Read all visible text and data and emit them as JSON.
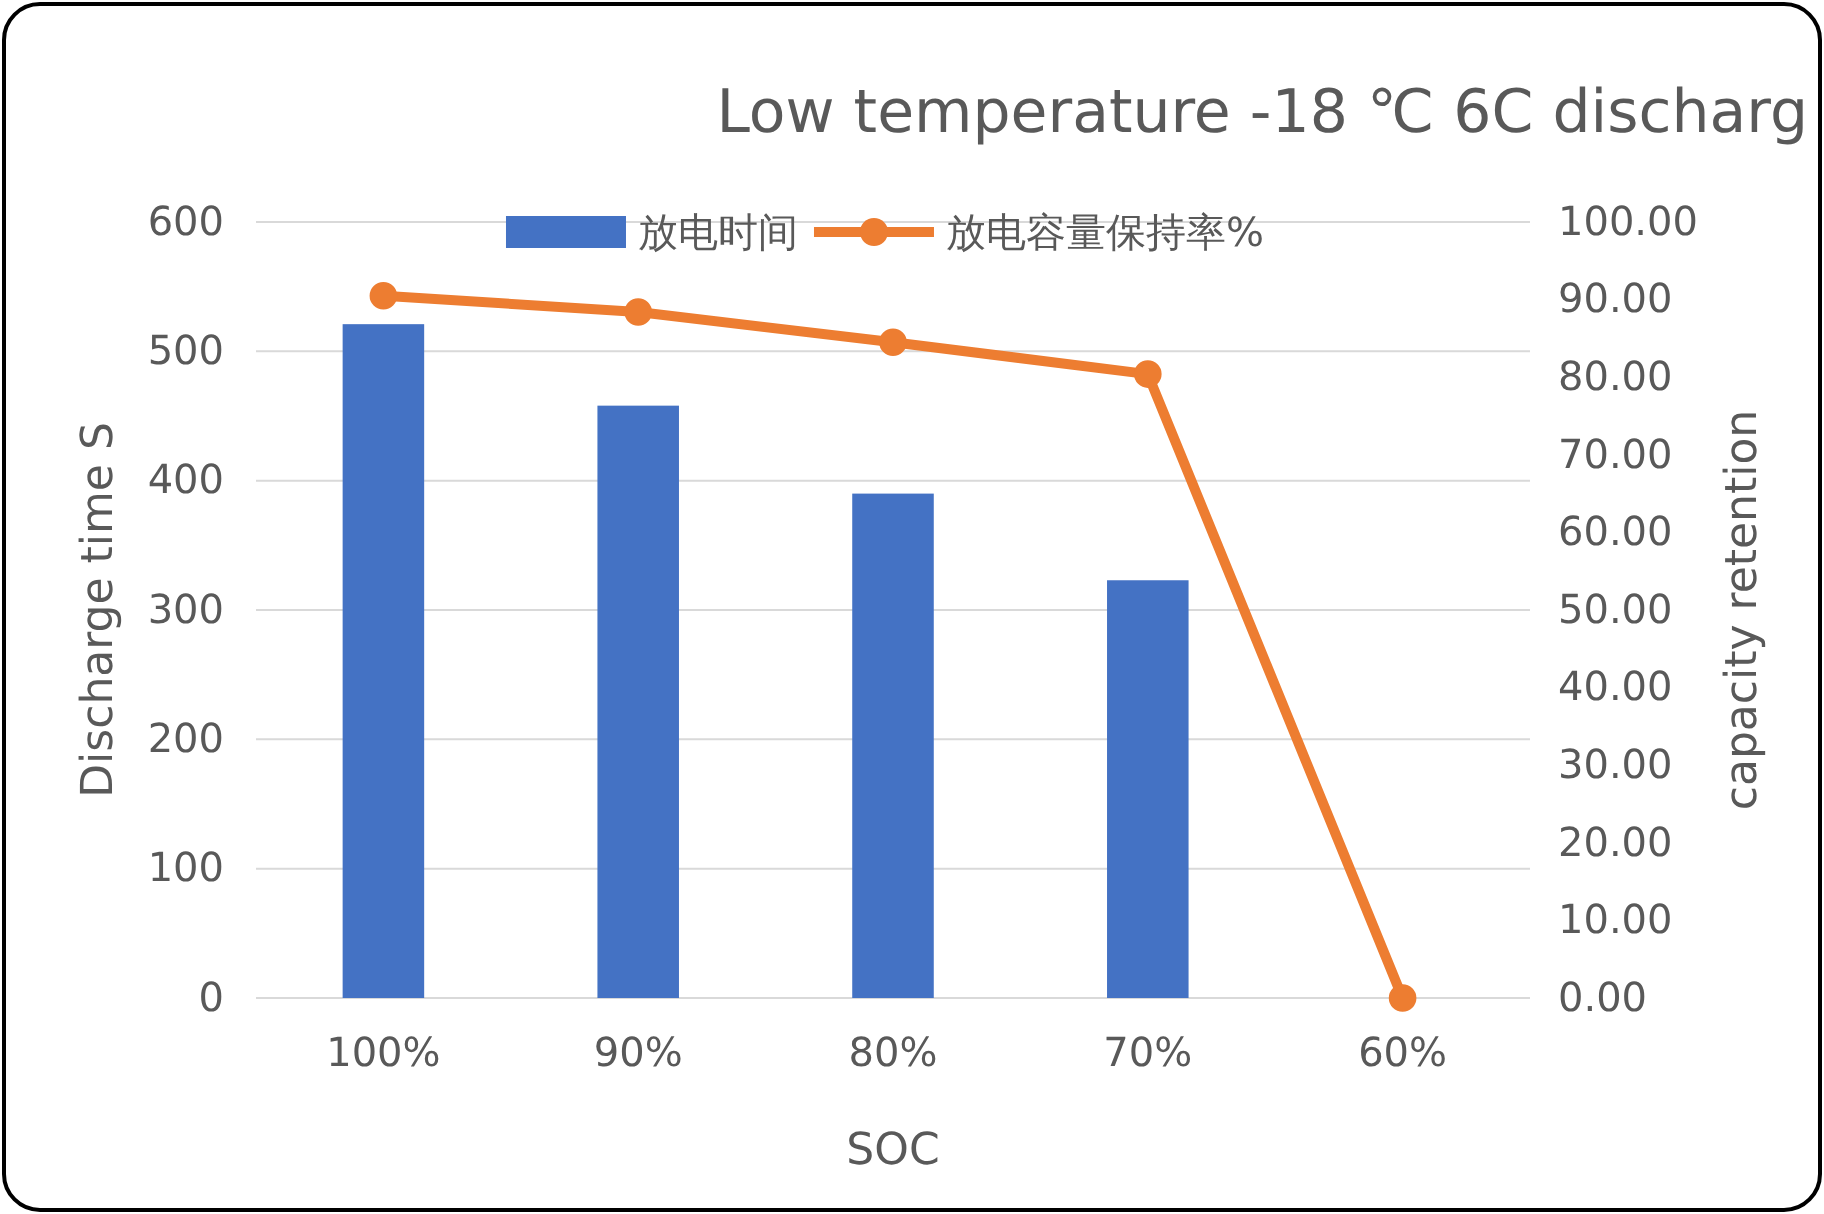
{
  "chart_data": {
    "type": "bar",
    "title": "Low temperature -18 ℃ 6C discharg",
    "xlabel": "SOC",
    "ylabel": "Discharge time S",
    "y2label": "capacity retention",
    "categories": [
      "100%",
      "90%",
      "80%",
      "70%",
      "60%"
    ],
    "series": [
      {
        "name": "放电时间",
        "color": "#4472c4",
        "values": [
          521,
          458,
          390,
          323,
          null
        ]
      },
      {
        "name": "放电容量保持率%",
        "type": "line",
        "axis": "y2",
        "color": "#ed7d31",
        "values": [
          90.5,
          88.4,
          84.5,
          80.4,
          0
        ]
      }
    ],
    "ylim": [
      0,
      600
    ],
    "yticks": [
      0,
      100,
      200,
      300,
      400,
      500,
      600
    ],
    "y2lim": [
      0,
      100
    ],
    "y2ticks": [
      {
        "value": 0,
        "label": "0.00"
      },
      {
        "value": 10,
        "label": "10.00"
      },
      {
        "value": 20,
        "label": "20.00"
      },
      {
        "value": 30,
        "label": "30.00"
      },
      {
        "value": 40,
        "label": "40.00"
      },
      {
        "value": 50,
        "label": "50.00"
      },
      {
        "value": 60,
        "label": "60.00"
      },
      {
        "value": 70,
        "label": "70.00"
      },
      {
        "value": 80,
        "label": "80.00"
      },
      {
        "value": 90,
        "label": "90.00"
      },
      {
        "value": 100,
        "label": "100.00"
      }
    ],
    "grid": "y",
    "legend": "top",
    "marker": "circle",
    "line_style": "solid"
  }
}
